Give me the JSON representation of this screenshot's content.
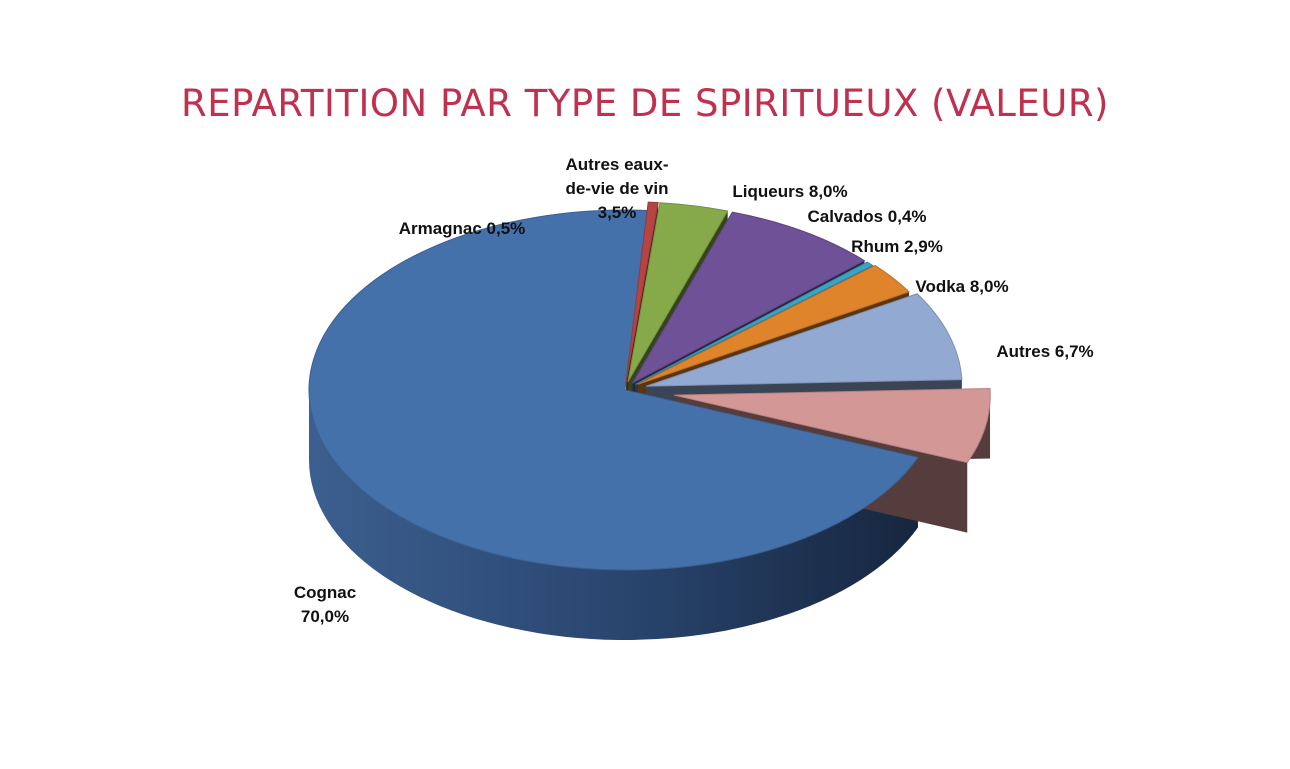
{
  "page": {
    "title": "REPARTITION PAR TYPE DE SPIRITUEUX (VALEUR)",
    "colors": {
      "title": "#c0304f",
      "background": "#ffffff"
    }
  },
  "chart_data": {
    "type": "pie",
    "style": "3d-exploded",
    "title": "REPARTITION PAR TYPE DE SPIRITUEUX (VALEUR)",
    "unit": "%",
    "slices": [
      {
        "label": "Cognac",
        "value": 70.0,
        "display": [
          "Cognac",
          "70,0%"
        ],
        "color": "#4571ab"
      },
      {
        "label": "Armagnac",
        "value": 0.5,
        "display": [
          "Armagnac 0,5%"
        ],
        "color": "#b64443"
      },
      {
        "label": "Autres eaux-de-vie de vin",
        "value": 3.5,
        "display": [
          "Autres eaux-",
          "de-vie de vin",
          "3,5%"
        ],
        "color": "#86aa4a"
      },
      {
        "label": "Liqueurs",
        "value": 8.0,
        "display": [
          "Liqueurs 8,0%"
        ],
        "color": "#6e5196"
      },
      {
        "label": "Calvados",
        "value": 0.4,
        "display": [
          "Calvados  0,4%"
        ],
        "color": "#3aa4c4"
      },
      {
        "label": "Rhum",
        "value": 2.9,
        "display": [
          "Rhum 2,9%"
        ],
        "color": "#e0842c"
      },
      {
        "label": "Vodka",
        "value": 8.0,
        "display": [
          "Vodka  8,0%"
        ],
        "color": "#92a9d2"
      },
      {
        "label": "Autres",
        "value": 6.7,
        "display": [
          "Autres 6,7%"
        ],
        "color": "#d39896"
      }
    ]
  }
}
